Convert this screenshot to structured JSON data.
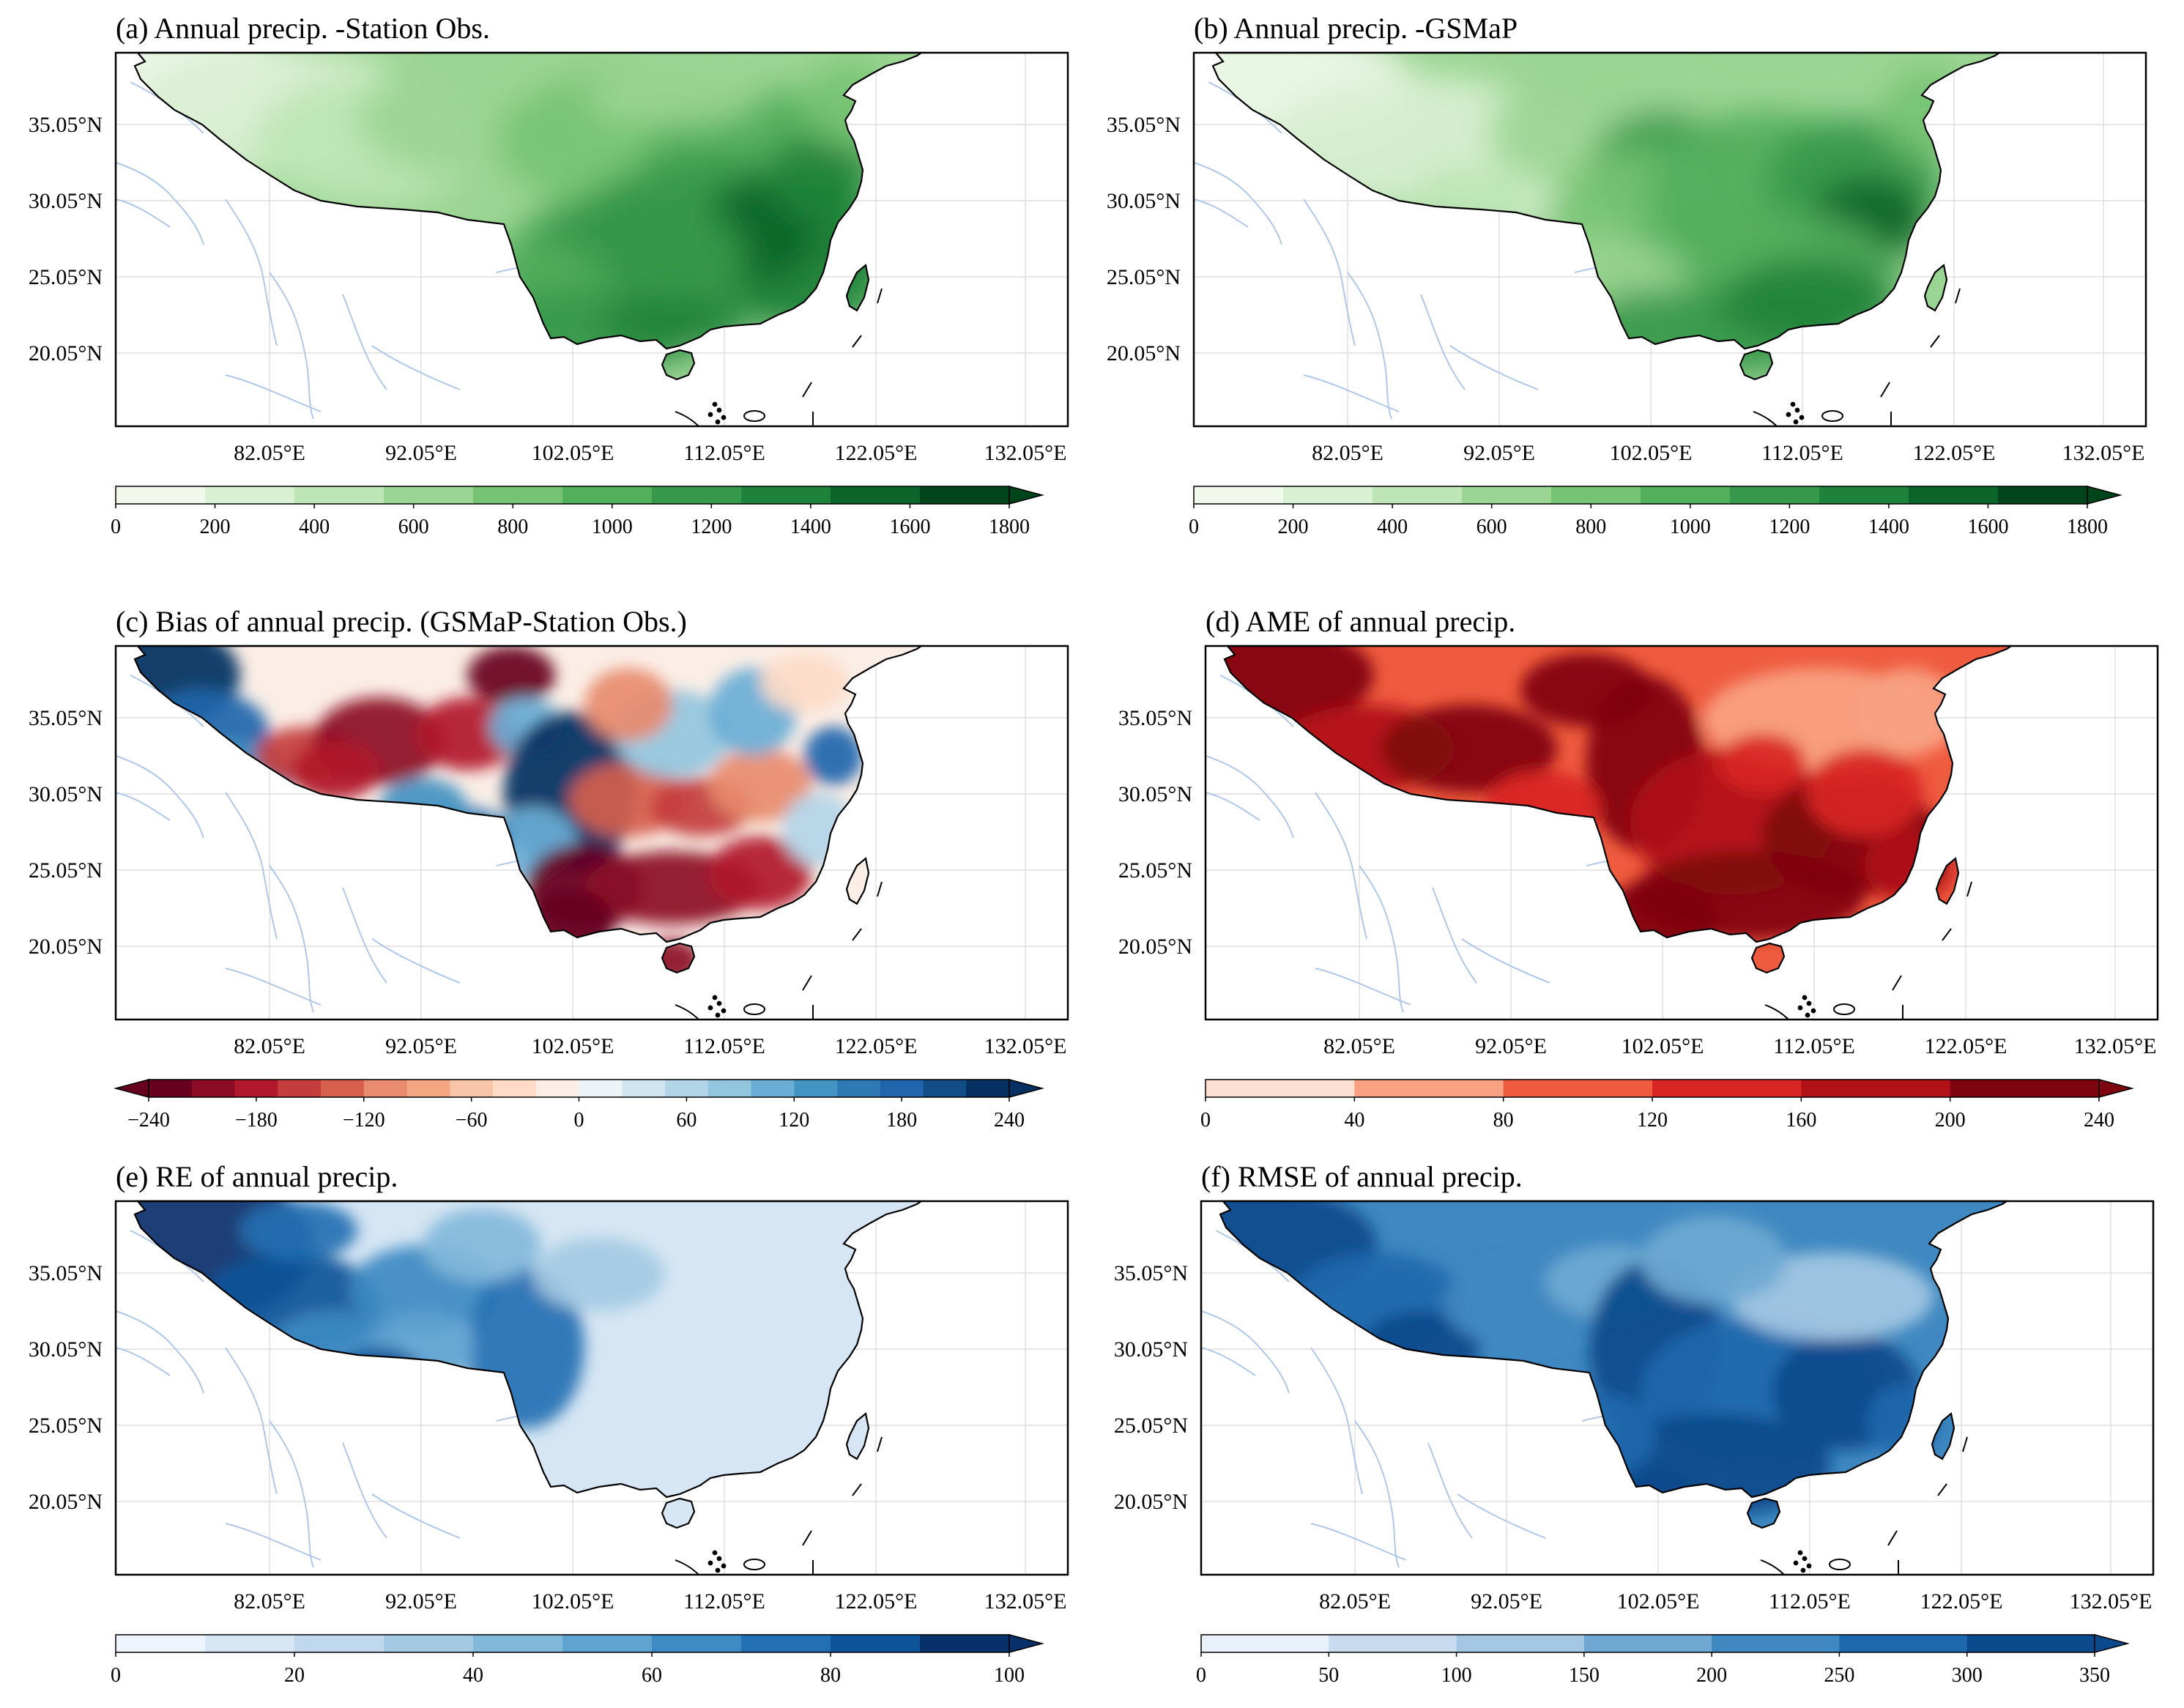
{
  "figure": {
    "panels": [
      {
        "id": "a",
        "title": "(a) Annual precip. -Station Obs.",
        "lat_labels": [
          "35.05°N",
          "30.05°N",
          "25.05°N",
          "20.05°N"
        ],
        "lon_labels": [
          "82.05°E",
          "92.05°E",
          "102.05°E",
          "112.05°E",
          "122.05°E",
          "132.05°E"
        ],
        "colorbar": {
          "ticks": [
            "0",
            "200",
            "400",
            "600",
            "800",
            "1000",
            "1200",
            "1400",
            "1600",
            "1800"
          ],
          "levels": [
            0,
            200,
            400,
            600,
            800,
            1000,
            1200,
            1400,
            1600,
            1800
          ],
          "colors": [
            "#f0f9ec",
            "#d9f0d3",
            "#bde5b5",
            "#9bd593",
            "#76c373",
            "#52af5c",
            "#36984a",
            "#1f823a",
            "#0b652a",
            "#00441b"
          ],
          "extend": "max"
        }
      },
      {
        "id": "b",
        "title": "(b) Annual precip. -GSMaP",
        "lat_labels": [
          "35.05°N",
          "30.05°N",
          "25.05°N",
          "20.05°N"
        ],
        "lon_labels": [
          "82.05°E",
          "92.05°E",
          "102.05°E",
          "112.05°E",
          "122.05°E",
          "132.05°E"
        ],
        "colorbar": {
          "ticks": [
            "0",
            "200",
            "400",
            "600",
            "800",
            "1000",
            "1200",
            "1400",
            "1600",
            "1800"
          ],
          "levels": [
            0,
            200,
            400,
            600,
            800,
            1000,
            1200,
            1400,
            1600,
            1800
          ],
          "colors": [
            "#f0f9ec",
            "#d9f0d3",
            "#bde5b5",
            "#9bd593",
            "#76c373",
            "#52af5c",
            "#36984a",
            "#1f823a",
            "#0b652a",
            "#00441b"
          ],
          "extend": "max"
        }
      },
      {
        "id": "c",
        "title": "(c) Bias of annual precip. (GSMaP-Station Obs.)",
        "lat_labels": [
          "35.05°N",
          "30.05°N",
          "25.05°N",
          "20.05°N"
        ],
        "lon_labels": [
          "82.05°E",
          "92.05°E",
          "102.05°E",
          "112.05°E",
          "122.05°E",
          "132.05°E"
        ],
        "colorbar": {
          "ticks": [
            "−240",
            "−180",
            "−120",
            "−60",
            "0",
            "60",
            "120",
            "180",
            "240"
          ],
          "levels": [
            -240,
            -180,
            -120,
            -60,
            0,
            60,
            120,
            180,
            240
          ],
          "colors": [
            "#67001f",
            "#8c0b25",
            "#b2182b",
            "#c43c3c",
            "#d6604d",
            "#e88b6e",
            "#f4a582",
            "#f8c5a8",
            "#fddbc7",
            "#fbeee6",
            "#eef3f7",
            "#d1e5f0",
            "#b3d5e8",
            "#92c5de",
            "#6aaed6",
            "#4393c3",
            "#2f79b5",
            "#2166ac",
            "#134d87",
            "#053061"
          ],
          "extend": "both"
        }
      },
      {
        "id": "d",
        "title": "(d) AME of annual precip.",
        "lat_labels": [
          "35.05°N",
          "30.05°N",
          "25.05°N",
          "20.05°N"
        ],
        "lon_labels": [
          "82.05°E",
          "92.05°E",
          "102.05°E",
          "112.05°E",
          "122.05°E",
          "132.05°E"
        ],
        "colorbar": {
          "ticks": [
            "0",
            "40",
            "80",
            "120",
            "160",
            "200",
            "240"
          ],
          "levels": [
            0,
            40,
            80,
            120,
            160,
            200,
            240
          ],
          "colors": [
            "#fde0d2",
            "#f9a283",
            "#ef5b3f",
            "#d92524",
            "#b01217",
            "#7f0610"
          ],
          "extend": "max"
        }
      },
      {
        "id": "e",
        "title": "(e) RE of annual precip.",
        "lat_labels": [
          "35.05°N",
          "30.05°N",
          "25.05°N",
          "20.05°N"
        ],
        "lon_labels": [
          "82.05°E",
          "92.05°E",
          "102.05°E",
          "112.05°E",
          "122.05°E",
          "132.05°E"
        ],
        "colorbar": {
          "ticks": [
            "0",
            "20",
            "40",
            "60",
            "80",
            "100"
          ],
          "levels": [
            0,
            20,
            40,
            60,
            80,
            100
          ],
          "colors": [
            "#eef5fc",
            "#d6e6f4",
            "#c0d8ed",
            "#a4cae3",
            "#82b9db",
            "#5fa3d0",
            "#3e8ac3",
            "#2270b3",
            "#0d5499",
            "#08306b"
          ],
          "extend": "max"
        }
      },
      {
        "id": "f",
        "title": "(f) RMSE of annual precip.",
        "lat_labels": [
          "35.05°N",
          "30.05°N",
          "25.05°N",
          "20.05°N"
        ],
        "lon_labels": [
          "82.05°E",
          "92.05°E",
          "102.05°E",
          "112.05°E",
          "122.05°E",
          "132.05°E"
        ],
        "colorbar": {
          "ticks": [
            "0",
            "50",
            "100",
            "150",
            "200",
            "250",
            "300",
            "350"
          ],
          "levels": [
            0,
            50,
            100,
            150,
            200,
            250,
            300,
            350
          ],
          "colors": [
            "#e8f1fa",
            "#c9dcef",
            "#a4c8e3",
            "#6fa9d3",
            "#3f88c1",
            "#1d68ad",
            "#0a4a8c"
          ],
          "extend": "max"
        }
      }
    ]
  },
  "colors": {
    "river": "#b0c8e8",
    "gridline": "#d7d7d7",
    "coast": "#000000"
  }
}
